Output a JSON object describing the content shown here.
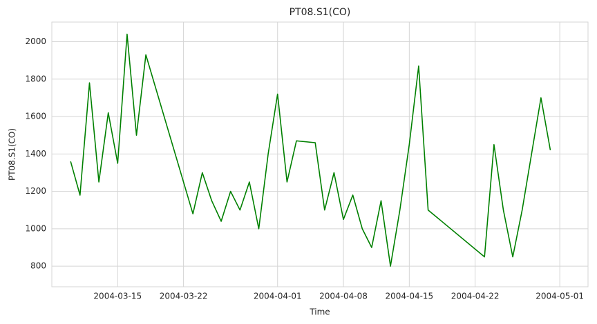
{
  "chart_data": {
    "type": "line",
    "title": "PT08.S1(CO)",
    "x_label": "Time",
    "y_label": "PT08.S1(CO)",
    "x": [
      "2004-03-10",
      "2004-03-11",
      "2004-03-12",
      "2004-03-13",
      "2004-03-14",
      "2004-03-15",
      "2004-03-16",
      "2004-03-17",
      "2004-03-18",
      "2004-03-23",
      "2004-03-24",
      "2004-03-25",
      "2004-03-26",
      "2004-03-27",
      "2004-03-28",
      "2004-03-29",
      "2004-03-30",
      "2004-03-31",
      "2004-04-01",
      "2004-04-02",
      "2004-04-03",
      "2004-04-05",
      "2004-04-06",
      "2004-04-07",
      "2004-04-08",
      "2004-04-09",
      "2004-04-10",
      "2004-04-11",
      "2004-04-12",
      "2004-04-13",
      "2004-04-14",
      "2004-04-15",
      "2004-04-16",
      "2004-04-17",
      "2004-04-23",
      "2004-04-24",
      "2004-04-25",
      "2004-04-26",
      "2004-04-27",
      "2004-04-28",
      "2004-04-29",
      "2004-04-30"
    ],
    "series": [
      {
        "name": "PT08.S1(CO)",
        "color": "#008000",
        "values": [
          1360,
          1180,
          1780,
          1250,
          1620,
          1350,
          2040,
          1500,
          1930,
          1080,
          1300,
          1150,
          1040,
          1200,
          1100,
          1250,
          1000,
          1400,
          1720,
          1250,
          1470,
          1460,
          1100,
          1300,
          1050,
          1180,
          1000,
          900,
          1150,
          800,
          1100,
          1450,
          1870,
          1100,
          850,
          1450,
          1100,
          850,
          1100,
          1400,
          1700,
          1420
        ]
      }
    ],
    "xlim": [
      "2004-03-08",
      "2004-05-04"
    ],
    "xticks": [
      "2004-03-15",
      "2004-03-22",
      "2004-04-01",
      "2004-04-08",
      "2004-04-15",
      "2004-04-22",
      "2004-05-01"
    ],
    "ylim": [
      690,
      2105
    ],
    "yticks": [
      800,
      1000,
      1200,
      1400,
      1600,
      1800,
      2000
    ],
    "grid": true
  }
}
